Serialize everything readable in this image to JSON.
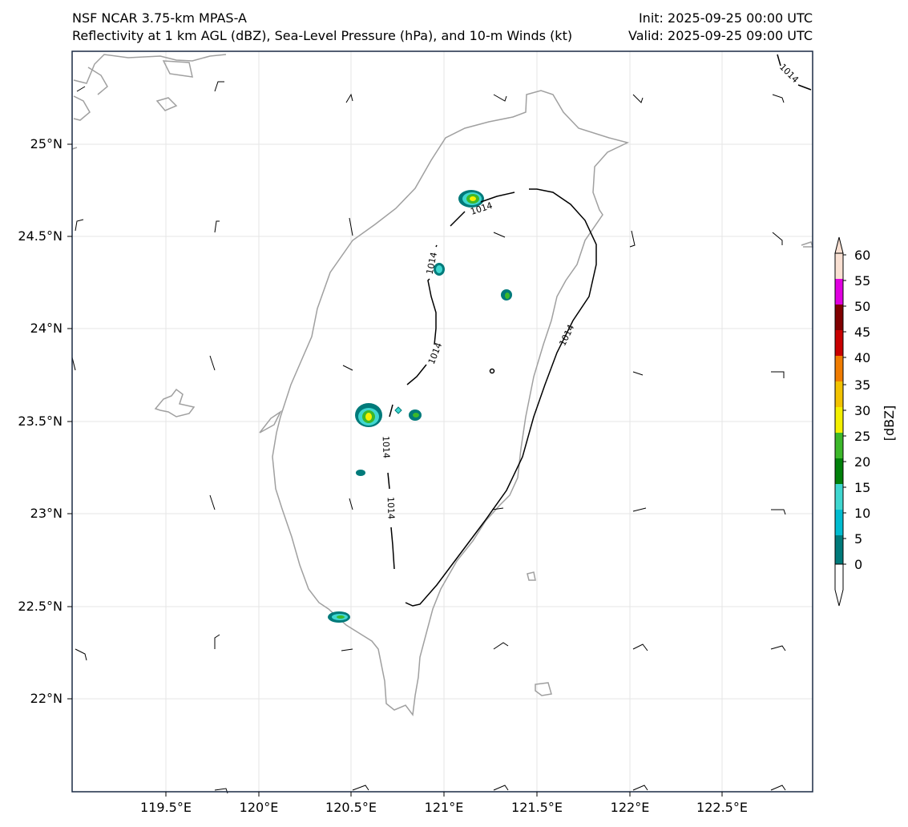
{
  "titles": {
    "left_line1": "NSF NCAR 3.75-km MPAS-A",
    "left_line2": "Reflectivity at 1 km AGL (dBZ), Sea-Level Pressure (hPa), and 10-m Winds (kt)",
    "right_line1": "Init: 2025-09-25 00:00 UTC",
    "right_line2": "Valid: 2025-09-25 09:00 UTC"
  },
  "map": {
    "lon_range": [
      119.0,
      122.95
    ],
    "lat_range": [
      21.5,
      25.5
    ],
    "lon_ticks": [
      "119.5°E",
      "120°E",
      "120.5°E",
      "121°E",
      "121.5°E",
      "122°E",
      "122.5°E"
    ],
    "lat_ticks": [
      "22°N",
      "22.5°N",
      "23°N",
      "23.5°N",
      "24°N",
      "24.5°N",
      "25°N"
    ],
    "grid": true,
    "coastline_color": "#a0a0a0",
    "contour_label": "1014"
  },
  "colorbar": {
    "label": "[dBZ]",
    "ticks": [
      "0",
      "5",
      "10",
      "15",
      "20",
      "25",
      "30",
      "35",
      "40",
      "45",
      "50",
      "55",
      "60"
    ],
    "colors": [
      "#007a7a",
      "#00bcd0",
      "#3fd7d0",
      "#00800a",
      "#3cb82a",
      "#f4f000",
      "#f2c200",
      "#f07c00",
      "#c80000",
      "#800000",
      "#e000e0",
      "#f9e0d2"
    ]
  }
}
